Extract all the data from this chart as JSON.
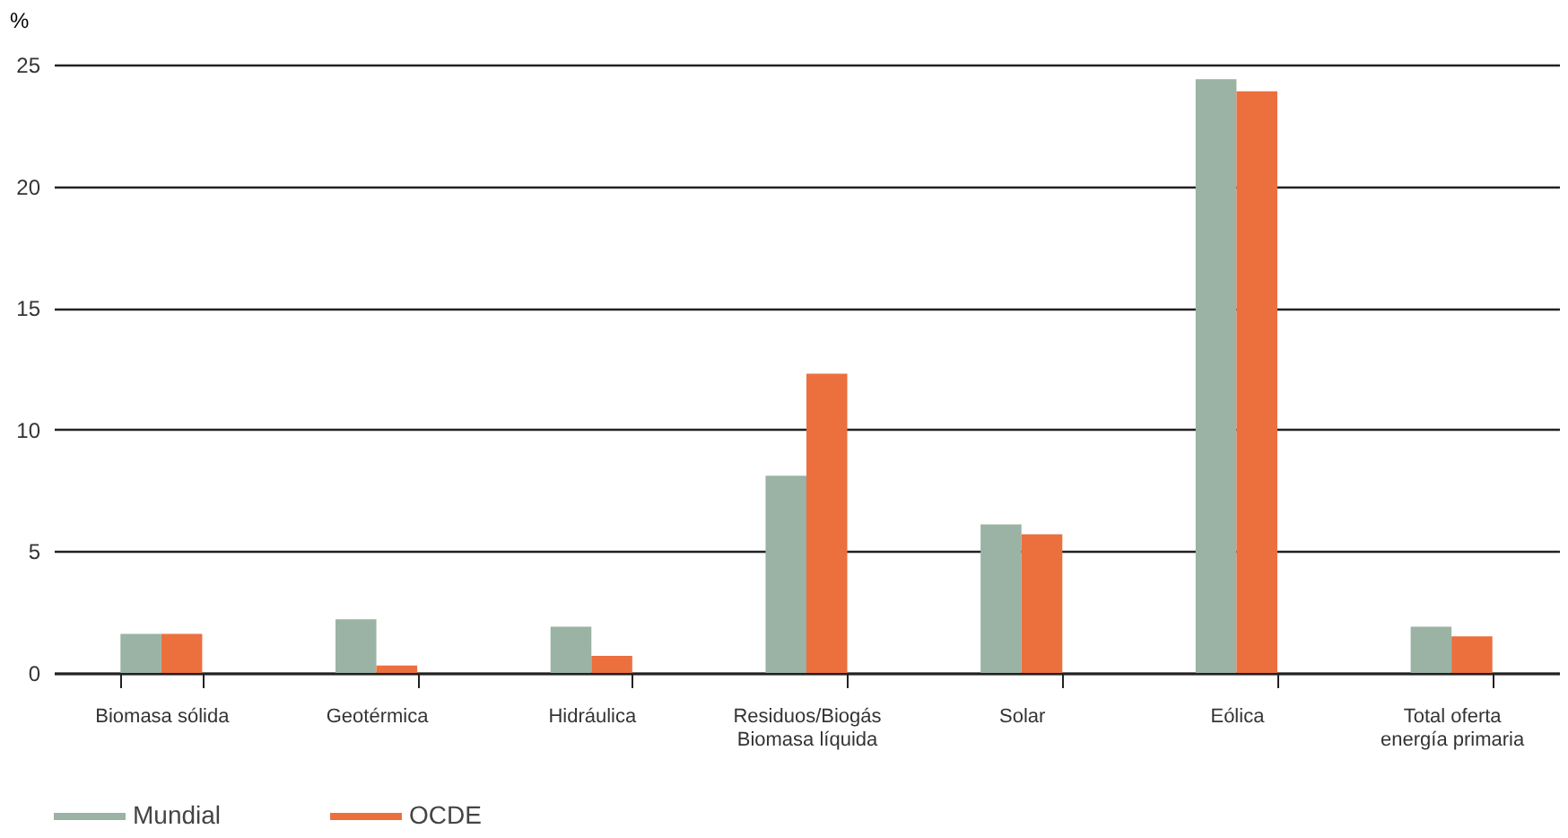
{
  "chart_data": {
    "type": "bar",
    "ylabel": "%",
    "categories": [
      "Biomasa sólida",
      "Geotérmica",
      "Hidráulica",
      "Residuos/Biogás\nBiomasa líquida",
      "Solar",
      "Eólica",
      "Total oferta\nenergía primaria"
    ],
    "series": [
      {
        "name": "Mundial",
        "color": "#9ab3a4",
        "values": [
          1.6,
          2.2,
          1.9,
          8.1,
          6.1,
          24.4,
          1.9
        ]
      },
      {
        "name": "OCDE",
        "color": "#ec6f3e",
        "values": [
          1.6,
          0.3,
          0.7,
          12.3,
          5.7,
          23.9,
          1.5
        ]
      }
    ],
    "ylim": [
      0,
      25
    ],
    "yticks": [
      0,
      5,
      10,
      15,
      20,
      25
    ],
    "grid": "y",
    "legend": "bottom"
  }
}
